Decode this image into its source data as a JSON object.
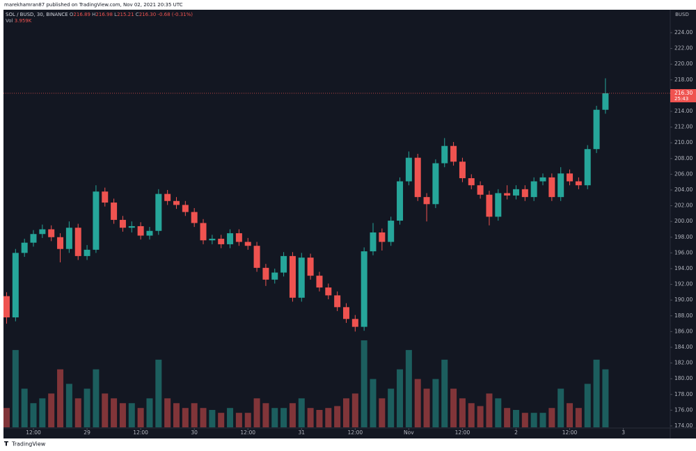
{
  "chart_data": {
    "type": "candlestick",
    "attribution": "marekhamran87 published on TradingView.com, Nov 02, 2021 20:35 UTC",
    "legend": {
      "symbol": "SOL / BUSD, 30, BINANCE",
      "items": [
        {
          "key": "O",
          "value": "216.89"
        },
        {
          "key": "H",
          "value": "216.98"
        },
        {
          "key": "L",
          "value": "215.21"
        },
        {
          "key": "C",
          "value": "216.30"
        }
      ],
      "change": "-0.68 (-0.31%)",
      "volume_key": "Vol",
      "volume_value": "3.959K"
    },
    "currency": "BUSD",
    "brand": "TradingView",
    "countdown": "25:43",
    "up_color": "#26a69a",
    "down_color": "#ef5350",
    "grid": false,
    "last_price": {
      "value": 216.3,
      "label": "216.30"
    },
    "x": [
      6,
      8,
      10,
      12,
      14,
      16,
      18,
      20,
      22,
      24,
      26,
      28,
      30,
      32,
      34,
      36,
      38,
      40,
      42,
      44,
      46,
      48,
      50,
      52,
      54,
      56,
      58,
      60,
      62,
      64,
      66,
      68,
      70,
      72,
      74,
      76,
      78,
      80,
      82,
      84,
      86,
      88,
      90,
      92,
      94,
      96,
      98,
      100,
      102,
      104,
      106,
      108,
      110,
      112,
      114,
      116,
      118,
      120,
      122,
      124,
      126,
      128,
      130,
      132,
      134,
      136,
      138,
      140
    ],
    "open": [
      190.5,
      187.8,
      196.0,
      197.3,
      198.4,
      199.0,
      198.0,
      196.5,
      199.2,
      195.6,
      196.4,
      203.8,
      202.4,
      200.2,
      199.2,
      199.4,
      198.2,
      198.8,
      203.5,
      202.6,
      202.1,
      201.2,
      199.8,
      197.6,
      197.8,
      197.1,
      198.5,
      197.4,
      196.9,
      194.1,
      192.6,
      193.5,
      195.6,
      190.3,
      195.4,
      193.1,
      191.6,
      190.6,
      189.1,
      187.6,
      186.6,
      196.2,
      198.6,
      197.4,
      200.1,
      205.1,
      208.1,
      203.1,
      202.2,
      207.4,
      209.6,
      207.6,
      205.5,
      204.6,
      203.4,
      200.6,
      203.6,
      203.3,
      204.1,
      203.1,
      205.1,
      205.6,
      203.1,
      206.1,
      205.1,
      204.6,
      209.2,
      214.2
    ],
    "high": [
      191.0,
      196.5,
      197.8,
      198.9,
      199.6,
      199.5,
      198.5,
      200.0,
      199.7,
      197.0,
      204.6,
      204.3,
      202.9,
      200.7,
      200.0,
      199.9,
      199.3,
      204.1,
      204.0,
      203.1,
      202.6,
      201.7,
      200.3,
      198.3,
      198.3,
      199.0,
      199.0,
      197.9,
      197.4,
      194.6,
      194.0,
      196.1,
      196.1,
      196.0,
      195.9,
      193.6,
      192.1,
      191.1,
      189.6,
      188.1,
      196.7,
      199.8,
      199.1,
      200.6,
      205.6,
      208.9,
      208.6,
      203.6,
      207.9,
      210.6,
      210.1,
      208.1,
      206.0,
      205.1,
      203.9,
      204.1,
      204.6,
      204.6,
      204.6,
      205.6,
      206.1,
      206.1,
      206.9,
      206.6,
      205.6,
      209.7,
      214.7,
      218.2
    ],
    "low": [
      187.0,
      187.3,
      195.5,
      196.8,
      197.9,
      197.5,
      194.8,
      196.0,
      195.1,
      195.1,
      196.0,
      201.9,
      199.7,
      198.7,
      198.6,
      197.7,
      197.7,
      198.3,
      202.1,
      201.6,
      200.7,
      199.3,
      197.1,
      197.1,
      196.6,
      196.6,
      196.9,
      196.4,
      193.6,
      191.8,
      192.1,
      193.0,
      189.8,
      189.8,
      192.6,
      191.1,
      190.1,
      188.6,
      187.1,
      186.0,
      186.1,
      195.7,
      196.3,
      196.9,
      199.6,
      204.6,
      202.6,
      200.0,
      201.7,
      206.9,
      207.1,
      205.0,
      204.1,
      202.9,
      199.5,
      200.1,
      202.8,
      202.8,
      202.6,
      202.6,
      204.6,
      202.6,
      202.6,
      204.6,
      204.1,
      204.1,
      208.7,
      213.7
    ],
    "close": [
      187.8,
      196.0,
      197.3,
      198.4,
      199.0,
      198.0,
      196.5,
      199.2,
      195.6,
      196.4,
      203.8,
      202.4,
      200.2,
      199.2,
      199.4,
      198.2,
      198.8,
      203.5,
      202.6,
      202.1,
      201.2,
      199.8,
      197.6,
      197.8,
      197.1,
      198.5,
      197.4,
      196.9,
      194.1,
      192.6,
      193.5,
      195.6,
      190.3,
      195.4,
      193.1,
      191.6,
      190.6,
      189.1,
      187.6,
      186.6,
      196.2,
      198.6,
      197.4,
      200.1,
      205.1,
      208.1,
      203.1,
      202.2,
      207.4,
      209.6,
      207.6,
      205.5,
      204.6,
      203.4,
      200.6,
      203.6,
      203.3,
      204.1,
      203.1,
      205.1,
      205.6,
      203.1,
      206.1,
      205.1,
      204.6,
      209.2,
      214.2,
      216.3
    ],
    "volume": [
      20,
      80,
      40,
      25,
      30,
      35,
      60,
      45,
      30,
      40,
      60,
      35,
      30,
      25,
      25,
      20,
      30,
      70,
      30,
      25,
      20,
      25,
      20,
      18,
      15,
      20,
      15,
      15,
      30,
      25,
      20,
      20,
      25,
      30,
      20,
      18,
      20,
      22,
      30,
      35,
      90,
      50,
      30,
      40,
      60,
      80,
      50,
      40,
      50,
      70,
      40,
      30,
      25,
      22,
      35,
      30,
      20,
      18,
      15,
      15,
      15,
      20,
      40,
      25,
      20,
      45,
      70,
      60
    ],
    "xlim": [
      5.3,
      154.5
    ],
    "xticks": [
      {
        "value": 12,
        "label": "12:00"
      },
      {
        "value": 24,
        "label": "29"
      },
      {
        "value": 36,
        "label": "12:00"
      },
      {
        "value": 48,
        "label": "30"
      },
      {
        "value": 60,
        "label": "12:00"
      },
      {
        "value": 72,
        "label": "31"
      },
      {
        "value": 84,
        "label": "12:00"
      },
      {
        "value": 96,
        "label": "Nov"
      },
      {
        "value": 108,
        "label": "12:00"
      },
      {
        "value": 120,
        "label": "2"
      },
      {
        "value": 132,
        "label": "12:00"
      },
      {
        "value": 144,
        "label": "3"
      }
    ],
    "ylim": [
      173.73,
      226.92
    ],
    "yticks": [
      {
        "value": 174,
        "label": "174.00"
      },
      {
        "value": 176,
        "label": "176.00"
      },
      {
        "value": 178,
        "label": "178.00"
      },
      {
        "value": 180,
        "label": "180.00"
      },
      {
        "value": 182,
        "label": "182.00"
      },
      {
        "value": 184,
        "label": "184.00"
      },
      {
        "value": 186,
        "label": "186.00"
      },
      {
        "value": 188,
        "label": "188.00"
      },
      {
        "value": 190,
        "label": "190.00"
      },
      {
        "value": 192,
        "label": "192.00"
      },
      {
        "value": 194,
        "label": "194.00"
      },
      {
        "value": 196,
        "label": "196.00"
      },
      {
        "value": 198,
        "label": "198.00"
      },
      {
        "value": 200,
        "label": "200.00"
      },
      {
        "value": 202,
        "label": "202.00"
      },
      {
        "value": 204,
        "label": "204.00"
      },
      {
        "value": 206,
        "label": "206.00"
      },
      {
        "value": 208,
        "label": "208.00"
      },
      {
        "value": 210,
        "label": "210.00"
      },
      {
        "value": 212,
        "label": "212.00"
      },
      {
        "value": 214,
        "label": "214.00"
      },
      {
        "value": 216,
        "label": "216.00"
      },
      {
        "value": 218,
        "label": "218.00"
      },
      {
        "value": 220,
        "label": "220.00"
      },
      {
        "value": 222,
        "label": "222.00"
      },
      {
        "value": 224,
        "label": "224.00"
      }
    ]
  }
}
